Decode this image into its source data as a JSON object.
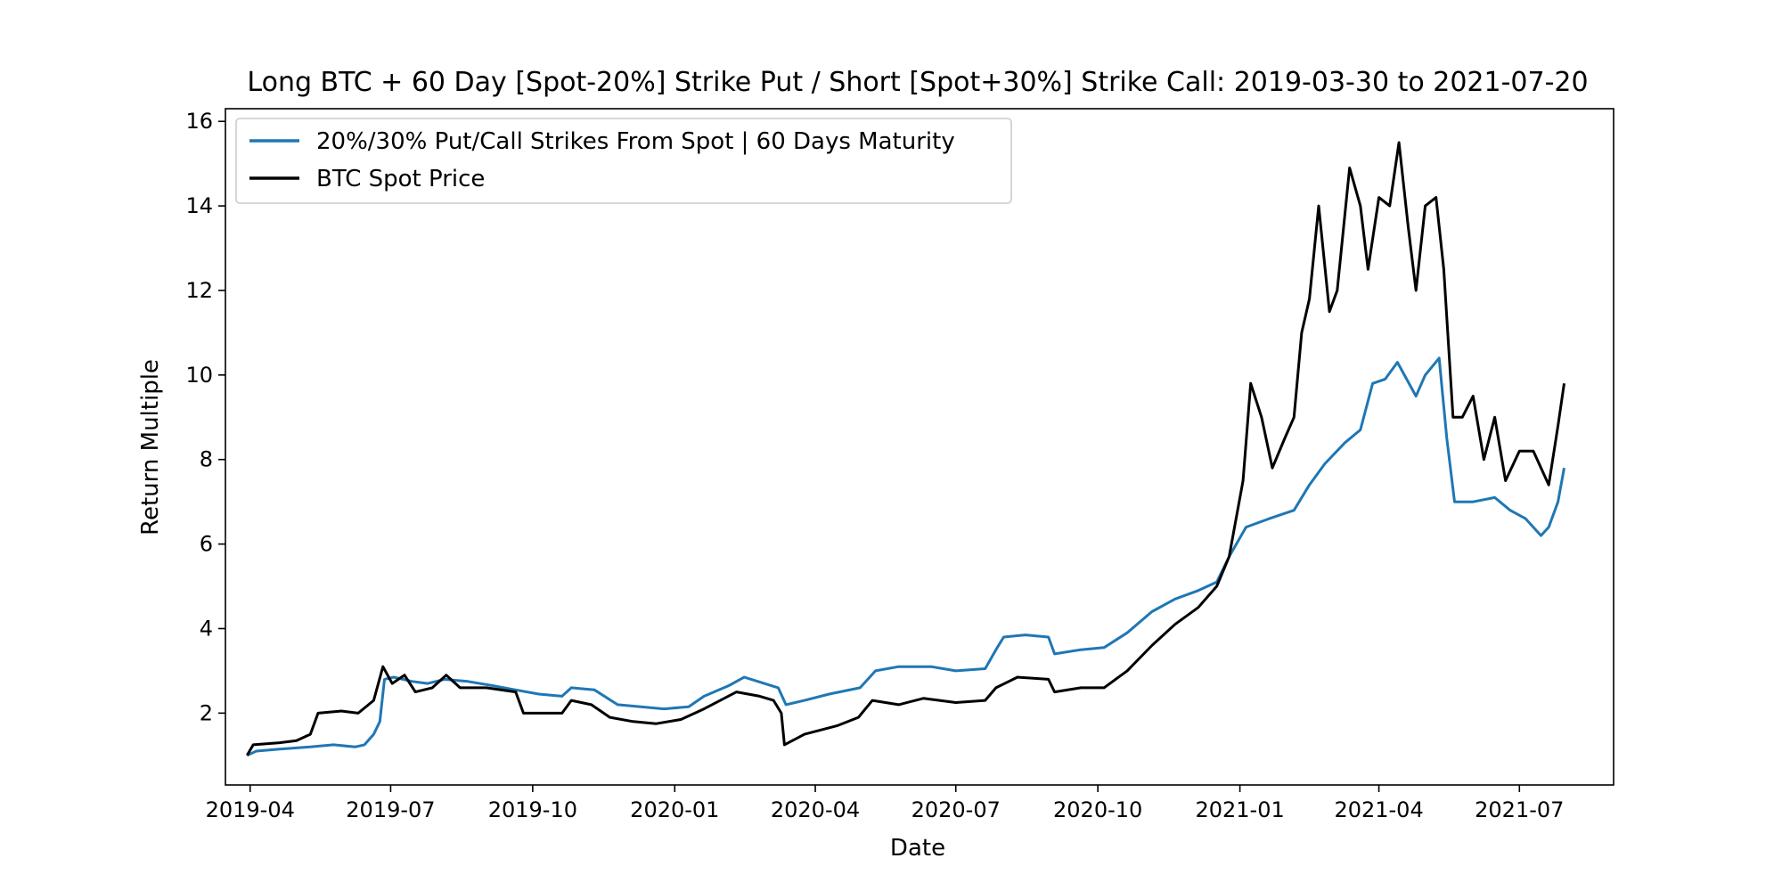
{
  "chart_data": {
    "type": "line",
    "title": "Long BTC + 60 Day [Spot-20%] Strike Put / Short [Spot+30%] Strike Call: 2019-03-30 to 2021-07-20",
    "xlabel": "Date",
    "ylabel": "Return Multiple",
    "x_ticks": [
      "2019-04",
      "2019-07",
      "2019-10",
      "2020-01",
      "2020-04",
      "2020-07",
      "2020-10",
      "2021-01",
      "2021-04",
      "2021-07"
    ],
    "y_ticks": [
      2,
      4,
      6,
      8,
      10,
      12,
      14,
      16
    ],
    "xlim": [
      "2019-03-16",
      "2021-08-31"
    ],
    "ylim": [
      0.3,
      16.3
    ],
    "grid": false,
    "legend_position": "upper-left",
    "series": [
      {
        "name": "20%/30% Put/Call Strikes From Spot | 60 Days Maturity",
        "color": "#1f77b4",
        "points": [
          [
            "2019-03-30",
            1.0
          ],
          [
            "2019-04-05",
            1.1
          ],
          [
            "2019-04-20",
            1.15
          ],
          [
            "2019-05-10",
            1.2
          ],
          [
            "2019-05-25",
            1.25
          ],
          [
            "2019-06-08",
            1.2
          ],
          [
            "2019-06-14",
            1.25
          ],
          [
            "2019-06-20",
            1.5
          ],
          [
            "2019-06-24",
            1.8
          ],
          [
            "2019-06-27",
            2.8
          ],
          [
            "2019-07-03",
            2.85
          ],
          [
            "2019-07-15",
            2.75
          ],
          [
            "2019-07-25",
            2.7
          ],
          [
            "2019-08-05",
            2.8
          ],
          [
            "2019-08-20",
            2.75
          ],
          [
            "2019-09-05",
            2.65
          ],
          [
            "2019-09-20",
            2.55
          ],
          [
            "2019-10-05",
            2.45
          ],
          [
            "2019-10-20",
            2.4
          ],
          [
            "2019-10-26",
            2.6
          ],
          [
            "2019-11-10",
            2.55
          ],
          [
            "2019-11-25",
            2.2
          ],
          [
            "2019-12-10",
            2.15
          ],
          [
            "2019-12-25",
            2.1
          ],
          [
            "2020-01-10",
            2.15
          ],
          [
            "2020-01-20",
            2.4
          ],
          [
            "2020-02-05",
            2.65
          ],
          [
            "2020-02-15",
            2.85
          ],
          [
            "2020-02-28",
            2.7
          ],
          [
            "2020-03-08",
            2.6
          ],
          [
            "2020-03-13",
            2.2
          ],
          [
            "2020-03-25",
            2.3
          ],
          [
            "2020-04-10",
            2.45
          ],
          [
            "2020-04-30",
            2.6
          ],
          [
            "2020-05-10",
            3.0
          ],
          [
            "2020-05-25",
            3.1
          ],
          [
            "2020-06-15",
            3.1
          ],
          [
            "2020-07-01",
            3.0
          ],
          [
            "2020-07-20",
            3.05
          ],
          [
            "2020-07-27",
            3.5
          ],
          [
            "2020-08-01",
            3.8
          ],
          [
            "2020-08-15",
            3.85
          ],
          [
            "2020-08-30",
            3.8
          ],
          [
            "2020-09-03",
            3.4
          ],
          [
            "2020-09-20",
            3.5
          ],
          [
            "2020-10-05",
            3.55
          ],
          [
            "2020-10-20",
            3.9
          ],
          [
            "2020-11-05",
            4.4
          ],
          [
            "2020-11-20",
            4.7
          ],
          [
            "2020-12-05",
            4.9
          ],
          [
            "2020-12-17",
            5.1
          ],
          [
            "2020-12-25",
            5.7
          ],
          [
            "2021-01-05",
            6.4
          ],
          [
            "2021-01-20",
            6.6
          ],
          [
            "2021-02-05",
            6.8
          ],
          [
            "2021-02-15",
            7.4
          ],
          [
            "2021-02-25",
            7.9
          ],
          [
            "2021-03-10",
            8.4
          ],
          [
            "2021-03-20",
            8.7
          ],
          [
            "2021-03-28",
            9.8
          ],
          [
            "2021-04-05",
            9.9
          ],
          [
            "2021-04-13",
            10.3
          ],
          [
            "2021-04-25",
            9.5
          ],
          [
            "2021-05-01",
            10.0
          ],
          [
            "2021-05-10",
            10.4
          ],
          [
            "2021-05-15",
            8.5
          ],
          [
            "2021-05-20",
            7.0
          ],
          [
            "2021-06-01",
            7.0
          ],
          [
            "2021-06-15",
            7.1
          ],
          [
            "2021-06-25",
            6.8
          ],
          [
            "2021-07-05",
            6.6
          ],
          [
            "2021-07-15",
            6.2
          ],
          [
            "2021-07-20",
            6.4
          ],
          [
            "2021-07-26",
            7.0
          ],
          [
            "2021-07-30",
            7.8
          ]
        ]
      },
      {
        "name": "BTC Spot Price",
        "color": "#000000",
        "points": [
          [
            "2019-03-30",
            1.0
          ],
          [
            "2019-04-03",
            1.25
          ],
          [
            "2019-04-20",
            1.3
          ],
          [
            "2019-05-01",
            1.35
          ],
          [
            "2019-05-10",
            1.5
          ],
          [
            "2019-05-15",
            2.0
          ],
          [
            "2019-05-30",
            2.05
          ],
          [
            "2019-06-10",
            2.0
          ],
          [
            "2019-06-20",
            2.3
          ],
          [
            "2019-06-26",
            3.1
          ],
          [
            "2019-07-02",
            2.7
          ],
          [
            "2019-07-10",
            2.9
          ],
          [
            "2019-07-17",
            2.5
          ],
          [
            "2019-07-28",
            2.6
          ],
          [
            "2019-08-06",
            2.9
          ],
          [
            "2019-08-15",
            2.6
          ],
          [
            "2019-09-01",
            2.6
          ],
          [
            "2019-09-20",
            2.5
          ],
          [
            "2019-09-25",
            2.0
          ],
          [
            "2019-10-10",
            2.0
          ],
          [
            "2019-10-20",
            2.0
          ],
          [
            "2019-10-26",
            2.3
          ],
          [
            "2019-11-08",
            2.2
          ],
          [
            "2019-11-20",
            1.9
          ],
          [
            "2019-12-05",
            1.8
          ],
          [
            "2019-12-20",
            1.75
          ],
          [
            "2020-01-05",
            1.85
          ],
          [
            "2020-01-20",
            2.1
          ],
          [
            "2020-02-10",
            2.5
          ],
          [
            "2020-02-25",
            2.4
          ],
          [
            "2020-03-05",
            2.3
          ],
          [
            "2020-03-10",
            2.0
          ],
          [
            "2020-03-12",
            1.25
          ],
          [
            "2020-03-25",
            1.5
          ],
          [
            "2020-04-15",
            1.7
          ],
          [
            "2020-04-29",
            1.9
          ],
          [
            "2020-05-08",
            2.3
          ],
          [
            "2020-05-25",
            2.2
          ],
          [
            "2020-06-10",
            2.35
          ],
          [
            "2020-07-01",
            2.25
          ],
          [
            "2020-07-20",
            2.3
          ],
          [
            "2020-07-27",
            2.6
          ],
          [
            "2020-08-10",
            2.85
          ],
          [
            "2020-08-30",
            2.8
          ],
          [
            "2020-09-03",
            2.5
          ],
          [
            "2020-09-20",
            2.6
          ],
          [
            "2020-10-05",
            2.6
          ],
          [
            "2020-10-20",
            3.0
          ],
          [
            "2020-11-05",
            3.6
          ],
          [
            "2020-11-20",
            4.1
          ],
          [
            "2020-12-05",
            4.5
          ],
          [
            "2020-12-17",
            5.0
          ],
          [
            "2020-12-25",
            5.7
          ],
          [
            "2021-01-03",
            7.5
          ],
          [
            "2021-01-08",
            9.8
          ],
          [
            "2021-01-15",
            9.0
          ],
          [
            "2021-01-22",
            7.8
          ],
          [
            "2021-01-30",
            8.5
          ],
          [
            "2021-02-05",
            9.0
          ],
          [
            "2021-02-10",
            11.0
          ],
          [
            "2021-02-15",
            11.8
          ],
          [
            "2021-02-21 ",
            14.0
          ],
          [
            "2021-02-28",
            11.5
          ],
          [
            "2021-03-05",
            12.0
          ],
          [
            "2021-03-13",
            14.9
          ],
          [
            "2021-03-20",
            14.0
          ],
          [
            "2021-03-25",
            12.5
          ],
          [
            "2021-04-01",
            14.2
          ],
          [
            "2021-04-08",
            14.0
          ],
          [
            "2021-04-14",
            15.5
          ],
          [
            "2021-04-20",
            13.5
          ],
          [
            "2021-04-25",
            12.0
          ],
          [
            "2021-05-01",
            14.0
          ],
          [
            "2021-05-08",
            14.2
          ],
          [
            "2021-05-13",
            12.5
          ],
          [
            "2021-05-19",
            9.0
          ],
          [
            "2021-05-25",
            9.0
          ],
          [
            "2021-06-01",
            9.5
          ],
          [
            "2021-06-08",
            8.0
          ],
          [
            "2021-06-15",
            9.0
          ],
          [
            "2021-06-22",
            7.5
          ],
          [
            "2021-07-01",
            8.2
          ],
          [
            "2021-07-10",
            8.2
          ],
          [
            "2021-07-20",
            7.4
          ],
          [
            "2021-07-26",
            8.8
          ],
          [
            "2021-07-30",
            9.8
          ]
        ]
      }
    ]
  }
}
